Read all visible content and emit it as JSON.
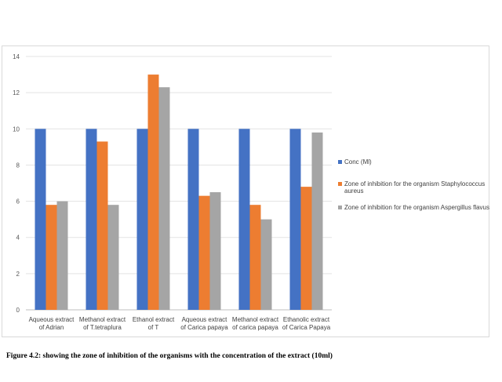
{
  "chart_data": {
    "type": "bar",
    "title": "",
    "xlabel": "",
    "ylabel": "",
    "ylim": [
      0,
      14
    ],
    "yticks": [
      0,
      2,
      4,
      6,
      8,
      10,
      12,
      14
    ],
    "grid": true,
    "legend_position": "right",
    "categories": [
      [
        "Aqueous extract",
        "of  Adrian"
      ],
      [
        "Methanol extract",
        "of T.tetraplura"
      ],
      [
        "Ethanol extract",
        "of T"
      ],
      [
        "Aqueous extract",
        "of Carica papaya"
      ],
      [
        "Methanol extract",
        "of carica papaya"
      ],
      [
        "Ethanolic extract",
        "of Carica Papaya"
      ]
    ],
    "series": [
      {
        "name": "Conc (Ml)",
        "color": "#4472c4",
        "values": [
          10,
          10,
          10,
          10,
          10,
          10
        ]
      },
      {
        "name": [
          "Zone of inhibition for the organism Staphylococcus",
          "aureus"
        ],
        "color": "#ed7d31",
        "values": [
          5.8,
          9.3,
          13,
          6.3,
          5.8,
          6.8
        ]
      },
      {
        "name": [
          "Zone of inhibition for the organism Aspergillus flavus"
        ],
        "color": "#a5a5a5",
        "values": [
          6,
          5.8,
          12.3,
          6.5,
          5,
          9.8
        ]
      }
    ]
  },
  "caption": "Figure 4.2: showing the zone of inhibition of the organisms with the concentration of the extract (10ml)"
}
